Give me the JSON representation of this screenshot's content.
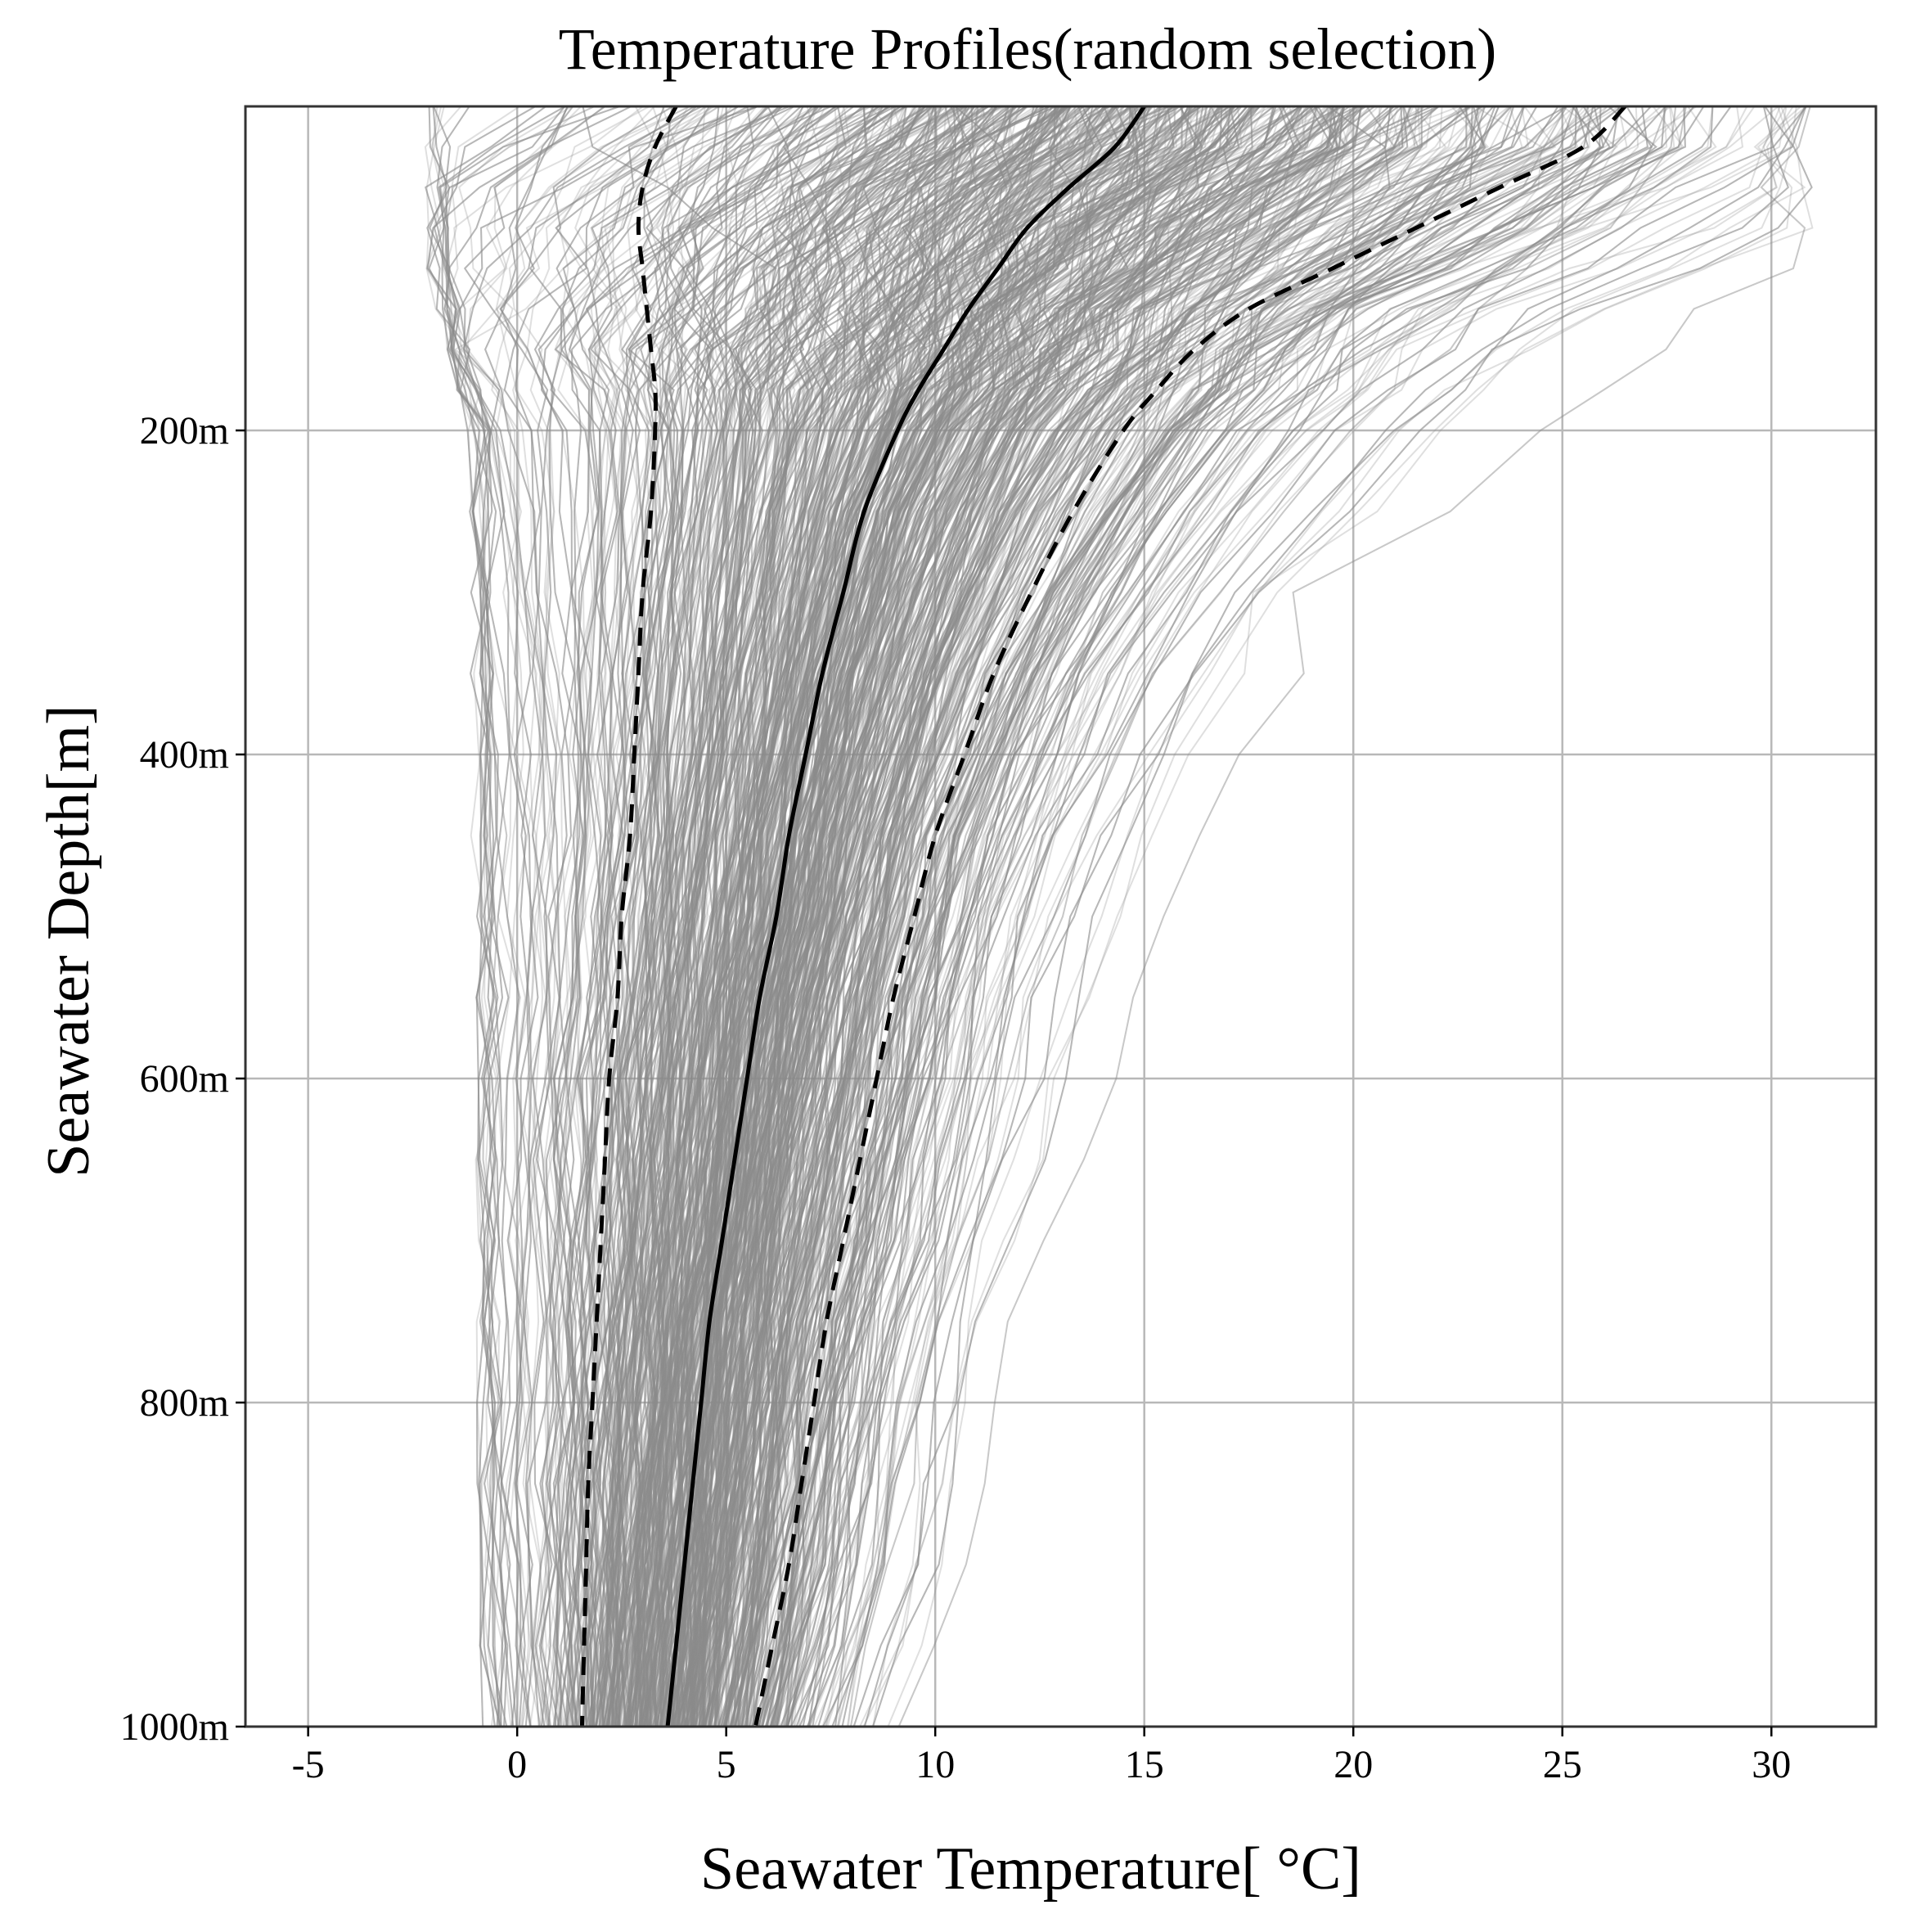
{
  "chart_data": {
    "type": "line",
    "title": "Temperature Profiles(random selection)",
    "xlabel": "Seawater Temperature[ °C]",
    "ylabel": "Seawater Depth[m]",
    "xlim": [
      -6.5,
      32.5
    ],
    "ylim": [
      0,
      1000
    ],
    "y_inverted": true,
    "grid": true,
    "x_ticks": [
      {
        "value": -5,
        "label": "-5"
      },
      {
        "value": 0,
        "label": "0"
      },
      {
        "value": 5,
        "label": "5"
      },
      {
        "value": 10,
        "label": "10"
      },
      {
        "value": 15,
        "label": "15"
      },
      {
        "value": 20,
        "label": "20"
      },
      {
        "value": 25,
        "label": "25"
      },
      {
        "value": 30,
        "label": "30"
      }
    ],
    "y_ticks": [
      {
        "value": 200,
        "label": "200m"
      },
      {
        "value": 400,
        "label": "400m"
      },
      {
        "value": 600,
        "label": "600m"
      },
      {
        "value": 800,
        "label": "800m"
      },
      {
        "value": 1000,
        "label": "1000m"
      }
    ],
    "depth": [
      0,
      25,
      50,
      75,
      100,
      125,
      150,
      175,
      200,
      250,
      300,
      350,
      400,
      450,
      500,
      550,
      600,
      650,
      700,
      750,
      800,
      850,
      900,
      950,
      1000
    ],
    "series": [
      {
        "role": "mean",
        "color": "#000000",
        "style": "solid",
        "values": [
          15.0,
          14.3,
          13.2,
          12.2,
          11.5,
          10.8,
          10.2,
          9.6,
          9.1,
          8.3,
          7.8,
          7.3,
          6.9,
          6.5,
          6.2,
          5.8,
          5.5,
          5.2,
          4.9,
          4.6,
          4.4,
          4.2,
          4.0,
          3.8,
          3.6
        ]
      },
      {
        "role": "upper",
        "color": "#000000",
        "style": "dashed",
        "values": [
          26.5,
          25.5,
          23.5,
          21.5,
          19.5,
          17.5,
          16.2,
          15.3,
          14.5,
          13.3,
          12.3,
          11.4,
          10.7,
          10.0,
          9.5,
          9.0,
          8.6,
          8.2,
          7.8,
          7.4,
          7.1,
          6.8,
          6.5,
          6.1,
          5.7
        ]
      },
      {
        "role": "lower",
        "color": "#000000",
        "style": "dashed",
        "values": [
          3.8,
          3.3,
          3.0,
          2.9,
          3.0,
          3.1,
          3.2,
          3.3,
          3.3,
          3.2,
          3.0,
          2.9,
          2.8,
          2.7,
          2.5,
          2.4,
          2.2,
          2.1,
          2.0,
          1.9,
          1.8,
          1.7,
          1.65,
          1.6,
          1.55
        ]
      }
    ],
    "profile_ensemble": {
      "color": "#8c8c8c",
      "count": 1400,
      "surface_range": [
        -2,
        31
      ],
      "deep_range": [
        -1,
        13.5
      ]
    }
  }
}
